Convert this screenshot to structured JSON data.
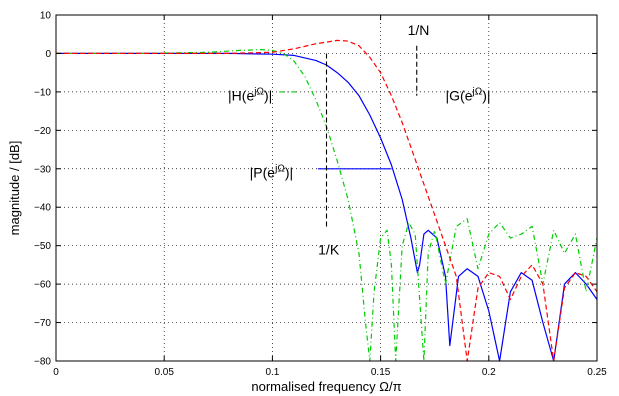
{
  "chart_data": {
    "type": "line",
    "xlabel": "normalised frequency Ω/π",
    "ylabel": "magnitude / [dB]",
    "xlim": [
      0,
      0.25
    ],
    "ylim": [
      -80,
      10
    ],
    "xticks": [
      "0",
      "0.05",
      "0.1",
      "0.15",
      "0.2",
      "0.25"
    ],
    "yticks": [
      "10",
      "0",
      "−10",
      "−20",
      "−30",
      "−40",
      "−50",
      "−60",
      "−70",
      "−80"
    ],
    "xtick_values": [
      0,
      0.05,
      0.1,
      0.15,
      0.2,
      0.25
    ],
    "ytick_values": [
      10,
      0,
      -10,
      -20,
      -30,
      -40,
      -50,
      -60,
      -70,
      -80
    ],
    "grid": true,
    "series": [
      {
        "name": "|P(e^jΩ)|",
        "color": "#0000ff",
        "style": "solid",
        "x": [
          0,
          0.05,
          0.08,
          0.1,
          0.11,
          0.12,
          0.125,
          0.13,
          0.135,
          0.14,
          0.145,
          0.15,
          0.155,
          0.16,
          0.164,
          0.167,
          0.168,
          0.17,
          0.172,
          0.176,
          0.18,
          0.182,
          0.186,
          0.19,
          0.195,
          0.2,
          0.205,
          0.21,
          0.215,
          0.22,
          0.225,
          0.23,
          0.235,
          0.24,
          0.245,
          0.25
        ],
        "y": [
          0,
          0,
          0,
          -0.2,
          -0.5,
          -1.8,
          -3,
          -5,
          -7.5,
          -11,
          -16,
          -22,
          -29,
          -38,
          -48,
          -57,
          -55,
          -47,
          -46,
          -48,
          -58,
          -76,
          -58,
          -56,
          -58,
          -67,
          -80,
          -62,
          -57,
          -59,
          -70,
          -80,
          -60,
          -57,
          -60,
          -64
        ]
      },
      {
        "name": "|H(e^jΩ)|",
        "color": "#00cc00",
        "style": "dash-dot",
        "x": [
          0,
          0.04,
          0.07,
          0.085,
          0.095,
          0.1,
          0.105,
          0.11,
          0.115,
          0.12,
          0.125,
          0.13,
          0.135,
          0.14,
          0.143,
          0.145,
          0.147,
          0.15,
          0.153,
          0.155,
          0.157,
          0.16,
          0.163,
          0.166,
          0.17,
          0.172,
          0.175,
          0.18,
          0.185,
          0.19,
          0.195,
          0.2,
          0.205,
          0.21,
          0.215,
          0.22,
          0.225,
          0.23,
          0.235,
          0.24,
          0.245,
          0.25
        ],
        "y": [
          0,
          0,
          0.3,
          0.8,
          1,
          0.8,
          0,
          -2,
          -6,
          -12,
          -19,
          -28,
          -38,
          -52,
          -70,
          -80,
          -62,
          -48,
          -46,
          -55,
          -80,
          -50,
          -44,
          -47,
          -80,
          -52,
          -46,
          -60,
          -45,
          -43,
          -56,
          -47,
          -44,
          -48,
          -47,
          -45,
          -60,
          -46,
          -52,
          -47,
          -62,
          -48
        ]
      },
      {
        "name": "|G(e^jΩ)|",
        "color": "#ff0000",
        "style": "dashed",
        "x": [
          0,
          0.08,
          0.1,
          0.11,
          0.12,
          0.13,
          0.135,
          0.14,
          0.145,
          0.15,
          0.155,
          0.16,
          0.165,
          0.17,
          0.175,
          0.18,
          0.185,
          0.19,
          0.195,
          0.2,
          0.205,
          0.21,
          0.215,
          0.22,
          0.225,
          0.23,
          0.235,
          0.24,
          0.245,
          0.25
        ],
        "y": [
          0,
          0,
          0.3,
          1.2,
          2.5,
          3.4,
          3.2,
          2,
          -1,
          -5,
          -11,
          -18,
          -26,
          -34,
          -42,
          -50,
          -58,
          -80,
          -61,
          -57,
          -58,
          -64,
          -58,
          -55,
          -60,
          -80,
          -61,
          -57,
          -58,
          -62
        ]
      }
    ],
    "annotations": [
      {
        "id": "label_H",
        "text": "|H(e",
        "sup": "jΩ",
        "close": ")|",
        "x": 0.0795,
        "y": -12.3,
        "anchor": "start",
        "line_to": {
          "x1": 0.111,
          "y1": -10,
          "x2": 0.102,
          "y2": -10
        },
        "line_color": "#00cc00",
        "line_style": "dash-dot"
      },
      {
        "id": "label_G",
        "text": "|G(e",
        "sup": "jΩ",
        "close": ")|",
        "x": 0.18,
        "y": -12.3,
        "anchor": "start"
      },
      {
        "id": "label_P",
        "text": "|P(e",
        "sup": "jΩ",
        "close": ")|",
        "x": 0.0895,
        "y": -32.3,
        "anchor": "start",
        "line_to": {
          "x1": 0.121,
          "y1": -30,
          "x2": 0.155,
          "y2": -30
        },
        "line_color": "#0000ff",
        "line_style": "solid"
      },
      {
        "id": "label_1N",
        "text": "1/N",
        "x": 0.1675,
        "y": 4.8,
        "anchor": "middle",
        "line_to": {
          "x1": 0.1667,
          "y1": 2,
          "x2": -11
        },
        "line_color": "#000000",
        "line_style": "dashed"
      },
      {
        "id": "label_1K",
        "text": "1/K",
        "x": 0.126,
        "y": -52.3,
        "anchor": "middle",
        "line_to": {
          "x1": 0.125,
          "y1": 0,
          "x2": -45
        },
        "line_color": "#000000",
        "line_style": "dashed"
      }
    ]
  }
}
